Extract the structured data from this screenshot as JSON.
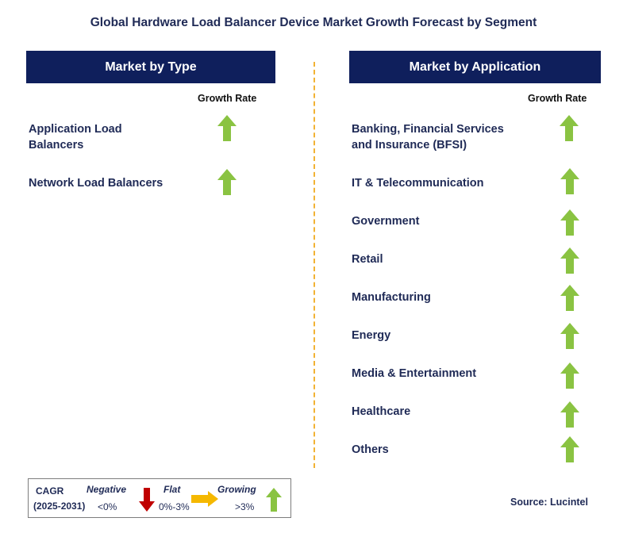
{
  "title": "Global Hardware Load Balancer Device Market Growth Forecast by Segment",
  "left_panel": {
    "header": "Market by Type",
    "growth_label": "Growth Rate",
    "items": [
      {
        "label_lines": [
          "Application Load",
          "Balancers"
        ],
        "trend": "growing"
      },
      {
        "label_lines": [
          "Network Load Balancers"
        ],
        "trend": "growing"
      }
    ]
  },
  "right_panel": {
    "header": "Market by Application",
    "growth_label": "Growth Rate",
    "items": [
      {
        "label_lines": [
          "Banking, Financial Services",
          "and Insurance (BFSI)"
        ],
        "trend": "growing"
      },
      {
        "label_lines": [
          "IT & Telecommunication"
        ],
        "trend": "growing"
      },
      {
        "label_lines": [
          "Government"
        ],
        "trend": "growing"
      },
      {
        "label_lines": [
          "Retail"
        ],
        "trend": "growing"
      },
      {
        "label_lines": [
          "Manufacturing"
        ],
        "trend": "growing"
      },
      {
        "label_lines": [
          "Energy"
        ],
        "trend": "growing"
      },
      {
        "label_lines": [
          "Media & Entertainment"
        ],
        "trend": "growing"
      },
      {
        "label_lines": [
          "Healthcare"
        ],
        "trend": "growing"
      },
      {
        "label_lines": [
          "Others"
        ],
        "trend": "growing"
      }
    ]
  },
  "legend": {
    "cagr_label": "CAGR",
    "period": "(2025-2031)",
    "negative_label": "Negative",
    "negative_range": "<0%",
    "flat_label": "Flat",
    "flat_range": "0%-3%",
    "growing_label": "Growing",
    "growing_range": ">3%"
  },
  "source": "Source: Lucintel",
  "colors": {
    "header_bg": "#0f1f5c",
    "text": "#1f2a56",
    "divider": "#f2b233",
    "growing": "#8ac342",
    "flat": "#f5b800",
    "negative": "#c00000"
  }
}
